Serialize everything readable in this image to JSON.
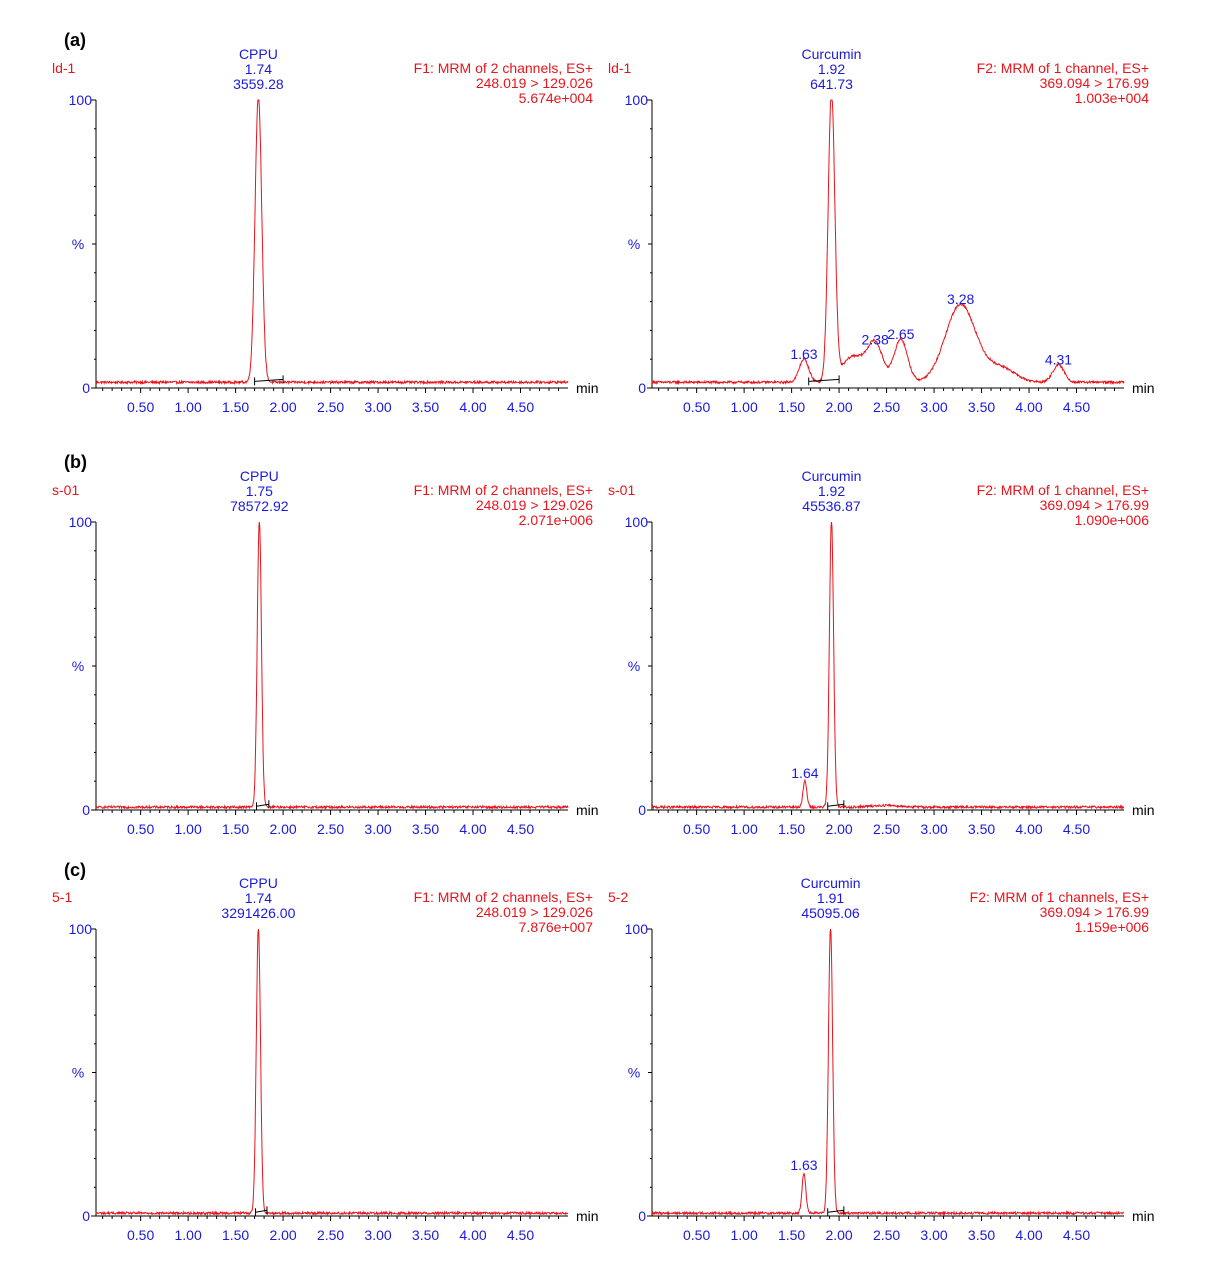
{
  "panel_letters": [
    "(a)",
    "(b)",
    "(c)"
  ],
  "chart_data": [
    {
      "type": "line",
      "row": 0,
      "col": 0,
      "run_label": "ld-1",
      "info": [
        "F1: MRM of 2 channels, ES+",
        "248.019 >  129.026",
        "5.674e+004"
      ],
      "x_unit": "min",
      "y_label": "%",
      "y_ticks": [
        "0",
        "100"
      ],
      "ylim": [
        0,
        100
      ],
      "x_ticks": [
        "0.50",
        "1.00",
        "1.50",
        "2.00",
        "2.50",
        "3.00",
        "3.50",
        "4.00",
        "4.50"
      ],
      "xlim": [
        0.03,
        5.0
      ],
      "baseline_level": 2,
      "peaks": [
        {
          "rt": 1.74,
          "height": 100,
          "width": 0.035,
          "lines": [
            "CPPU",
            "1.74",
            "3559.28"
          ]
        }
      ],
      "integration": [
        1.7,
        2.0
      ],
      "humps": [],
      "minor_labels": []
    },
    {
      "type": "line",
      "row": 0,
      "col": 1,
      "run_label": "ld-1",
      "info": [
        "F2: MRM of 1 channel, ES+",
        "369.094 > 176.99",
        "1.003e+004"
      ],
      "x_unit": "min",
      "y_label": "%",
      "y_ticks": [
        "0",
        "100"
      ],
      "ylim": [
        0,
        100
      ],
      "x_ticks": [
        "0.50",
        "1.00",
        "1.50",
        "2.00",
        "2.50",
        "3.00",
        "3.50",
        "4.00",
        "4.50"
      ],
      "xlim": [
        0.03,
        5.0
      ],
      "baseline_level": 2,
      "peaks": [
        {
          "rt": 1.92,
          "height": 100,
          "width": 0.035,
          "lines": [
            "Curcumin",
            "1.92",
            "641.73"
          ]
        }
      ],
      "integration": [
        1.68,
        2.0
      ],
      "humps": [
        {
          "rt": 1.63,
          "height": 8,
          "width": 0.05
        },
        {
          "rt": 2.15,
          "height": 9,
          "width": 0.12
        },
        {
          "rt": 2.38,
          "height": 13,
          "width": 0.08
        },
        {
          "rt": 2.65,
          "height": 15,
          "width": 0.07
        },
        {
          "rt": 3.28,
          "height": 27,
          "width": 0.16
        },
        {
          "rt": 3.7,
          "height": 5,
          "width": 0.15
        },
        {
          "rt": 4.31,
          "height": 6,
          "width": 0.06
        }
      ],
      "minor_labels": [
        {
          "rt": 1.63,
          "label": "1.63",
          "height": 8
        },
        {
          "rt": 2.38,
          "label": "2.38",
          "height": 13
        },
        {
          "rt": 2.65,
          "label": "2.65",
          "height": 15
        },
        {
          "rt": 3.28,
          "label": "3.28",
          "height": 27
        },
        {
          "rt": 4.31,
          "label": "4.31",
          "height": 6
        }
      ]
    },
    {
      "type": "line",
      "row": 1,
      "col": 0,
      "run_label": "s-01",
      "info": [
        "F1: MRM of 2 channels, ES+",
        "248.019 >  129.026",
        "2.071e+006"
      ],
      "x_unit": "min",
      "y_label": "%",
      "y_ticks": [
        "0",
        "100"
      ],
      "ylim": [
        0,
        100
      ],
      "x_ticks": [
        "0.50",
        "1.00",
        "1.50",
        "2.00",
        "2.50",
        "3.00",
        "3.50",
        "4.00",
        "4.50"
      ],
      "xlim": [
        0.03,
        5.0
      ],
      "baseline_level": 1,
      "peaks": [
        {
          "rt": 1.75,
          "height": 100,
          "width": 0.022,
          "lines": [
            "CPPU",
            "1.75",
            "78572.92"
          ]
        }
      ],
      "integration": [
        1.72,
        1.85
      ],
      "humps": [],
      "minor_labels": []
    },
    {
      "type": "line",
      "row": 1,
      "col": 1,
      "run_label": "s-01",
      "info": [
        "F2: MRM of 1 channel, ES+",
        "369.094 > 176.99",
        "1.090e+006"
      ],
      "x_unit": "min",
      "y_label": "%",
      "y_ticks": [
        "0",
        "100"
      ],
      "ylim": [
        0,
        100
      ],
      "x_ticks": [
        "0.50",
        "1.00",
        "1.50",
        "2.00",
        "2.50",
        "3.00",
        "3.50",
        "4.00",
        "4.50"
      ],
      "xlim": [
        0.03,
        5.0
      ],
      "baseline_level": 1,
      "peaks": [
        {
          "rt": 1.92,
          "height": 100,
          "width": 0.022,
          "lines": [
            "Curcumin",
            "1.92",
            "45536.87"
          ]
        }
      ],
      "integration": [
        1.88,
        2.05
      ],
      "humps": [
        {
          "rt": 1.64,
          "height": 9,
          "width": 0.02
        },
        {
          "rt": 2.5,
          "height": 0.6,
          "width": 0.15
        }
      ],
      "minor_labels": [
        {
          "rt": 1.64,
          "label": "1.64",
          "height": 9
        }
      ]
    },
    {
      "type": "line",
      "row": 2,
      "col": 0,
      "run_label": "5-1",
      "info": [
        "F1: MRM of 2 channels, ES+",
        "248.019 >  129.026",
        "7.876e+007"
      ],
      "x_unit": "min",
      "y_label": "%",
      "y_ticks": [
        "0",
        "100"
      ],
      "ylim": [
        0,
        100
      ],
      "x_ticks": [
        "0.50",
        "1.00",
        "1.50",
        "2.00",
        "2.50",
        "3.00",
        "3.50",
        "4.00",
        "4.50"
      ],
      "xlim": [
        0.03,
        5.0
      ],
      "baseline_level": 1,
      "peaks": [
        {
          "rt": 1.74,
          "height": 100,
          "width": 0.022,
          "lines": [
            "CPPU",
            "1.74",
            "3291426.00"
          ]
        }
      ],
      "integration": [
        1.71,
        1.83
      ],
      "humps": [],
      "minor_labels": []
    },
    {
      "type": "line",
      "row": 2,
      "col": 1,
      "run_label": "5-2",
      "info": [
        "F2: MRM of 1 channels, ES+",
        "369.094 > 176.99",
        "1.159e+006"
      ],
      "x_unit": "min",
      "y_label": "%",
      "y_ticks": [
        "0",
        "100"
      ],
      "ylim": [
        0,
        100
      ],
      "x_ticks": [
        "0.50",
        "1.00",
        "1.50",
        "2.00",
        "2.50",
        "3.00",
        "3.50",
        "4.00",
        "4.50"
      ],
      "xlim": [
        0.03,
        5.0
      ],
      "baseline_level": 1,
      "peaks": [
        {
          "rt": 1.91,
          "height": 100,
          "width": 0.022,
          "lines": [
            "Curcumin",
            "1.91",
            "45095.06"
          ]
        }
      ],
      "integration": [
        1.88,
        2.05
      ],
      "humps": [
        {
          "rt": 1.63,
          "height": 14,
          "width": 0.02
        }
      ],
      "minor_labels": [
        {
          "rt": 1.63,
          "label": "1.63",
          "height": 14
        }
      ]
    }
  ]
}
